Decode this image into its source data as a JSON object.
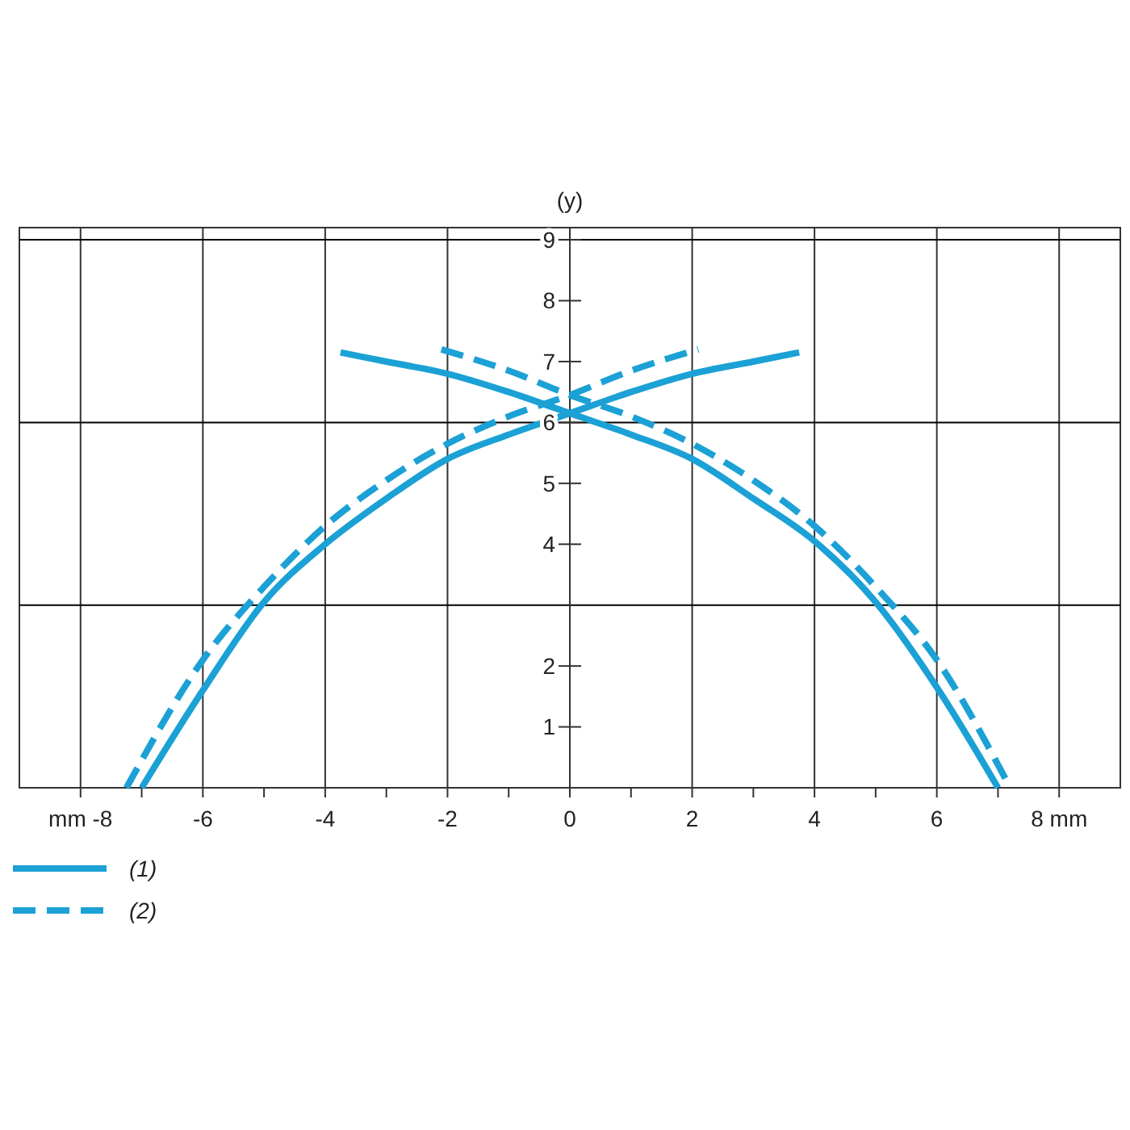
{
  "chart_data": {
    "type": "line",
    "ylabel": "(y)",
    "xlim": [
      -9,
      9
    ],
    "ylim": [
      0,
      9.2
    ],
    "xticks": [
      {
        "value": -8,
        "label": "mm -8"
      },
      {
        "value": -7,
        "label": null
      },
      -6,
      {
        "value": -5,
        "label": null
      },
      -4,
      {
        "value": -3,
        "label": null
      },
      -2,
      {
        "value": -1,
        "label": null
      },
      0,
      {
        "value": 1,
        "label": null
      },
      2,
      {
        "value": 3,
        "label": null
      },
      4,
      {
        "value": 5,
        "label": null
      },
      6,
      {
        "value": 7,
        "label": null
      },
      {
        "value": 8,
        "label": "8 mm"
      }
    ],
    "yticks": [
      1,
      2,
      4,
      5,
      6,
      7,
      8,
      9
    ],
    "grid": "x",
    "ref_lines": [
      {
        "axis": "y",
        "value": 3,
        "color": "#000000"
      },
      {
        "axis": "y",
        "value": 6,
        "color": "#000000"
      },
      {
        "axis": "y",
        "value": 9,
        "color": "#000000"
      }
    ],
    "legend": "bottom left",
    "marker": "none",
    "series": [
      {
        "name": "(1)",
        "color": "#1ba1d5",
        "line_style": "solid",
        "x": [
          -7,
          -6,
          -5,
          -4,
          -3,
          -2,
          -1,
          0,
          1,
          2,
          3,
          3.75,
          null,
          -3.75,
          -3,
          -2,
          -1,
          0,
          1,
          2,
          3,
          4,
          5,
          6,
          7
        ],
        "values": [
          0,
          1.6,
          3.05,
          4.0,
          4.75,
          5.4,
          5.8,
          6.15,
          6.5,
          6.8,
          7.0,
          7.15,
          null,
          7.15,
          7.0,
          6.8,
          6.5,
          6.15,
          5.8,
          5.4,
          4.75,
          4.05,
          3.05,
          1.65,
          0
        ]
      },
      {
        "name": "(2)",
        "color": "#1ba1d5",
        "line_style": "dashed",
        "x": [
          -7.25,
          -6,
          -5,
          -4,
          -3,
          -2,
          -1,
          0,
          1,
          2.1,
          null,
          -2.1,
          -1,
          0,
          1,
          2,
          3,
          4,
          5,
          6,
          7.2
        ],
        "values": [
          0,
          2.1,
          3.3,
          4.3,
          5.05,
          5.65,
          6.1,
          6.45,
          6.85,
          7.2,
          null,
          7.2,
          6.85,
          6.45,
          6.1,
          5.65,
          5.05,
          4.3,
          3.3,
          2.1,
          0
        ]
      }
    ]
  }
}
